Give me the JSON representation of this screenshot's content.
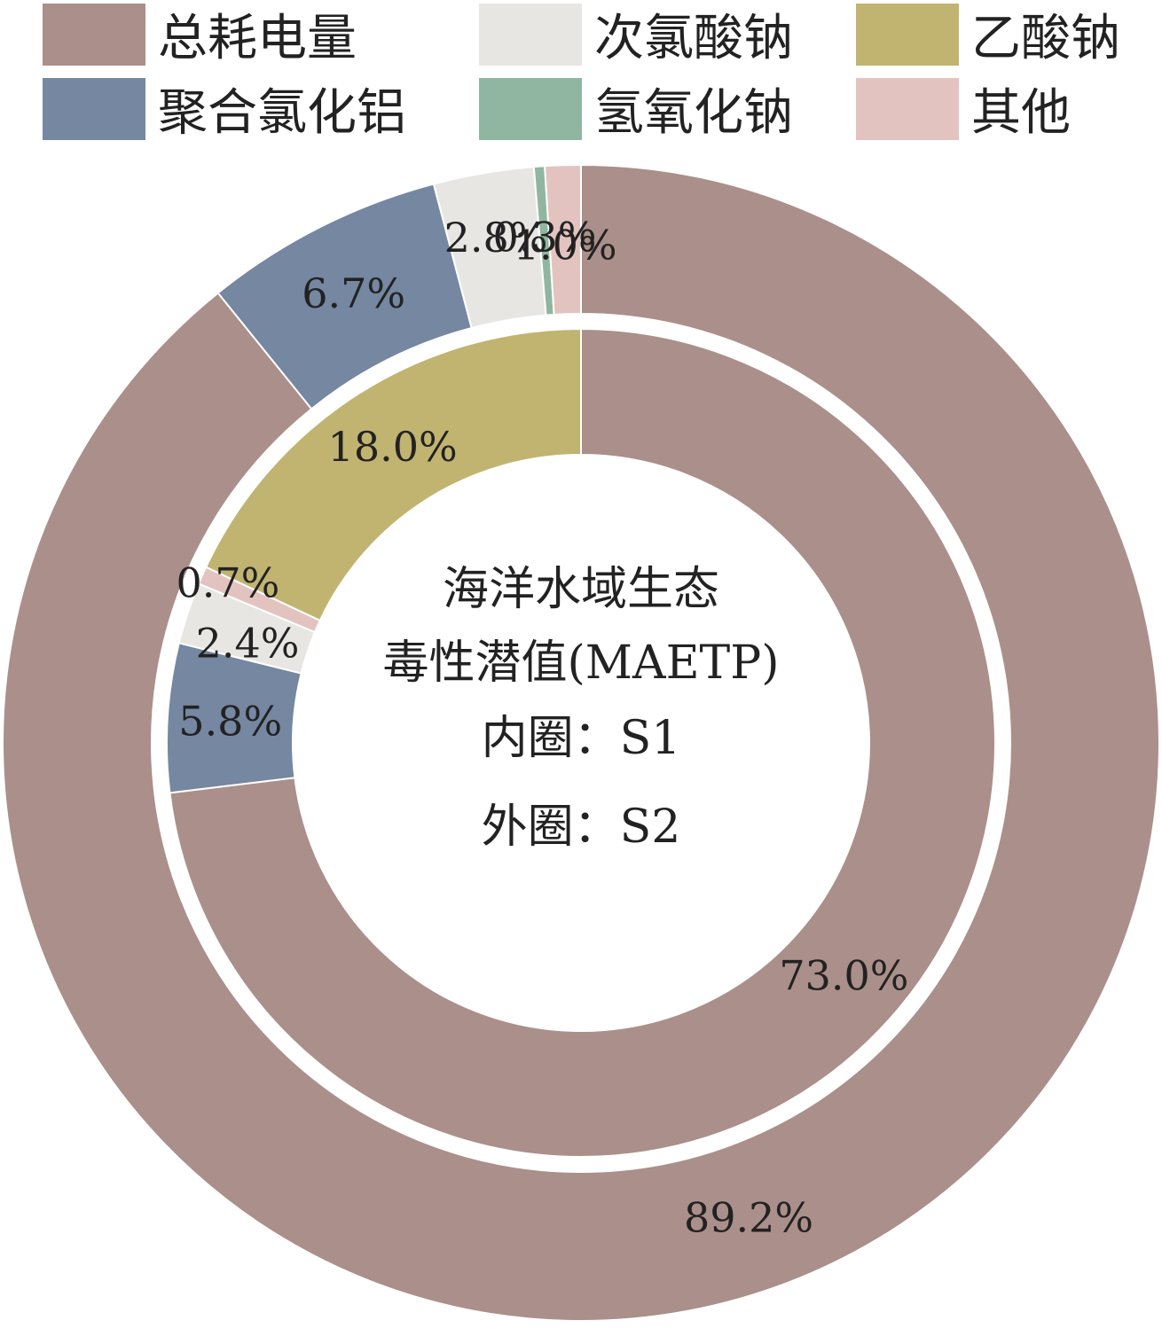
{
  "chart_data": {
    "type": "pie",
    "subtype": "nested-donut",
    "center_title": [
      "海洋水域生态",
      "毒性潜值(MAETP)",
      "内圈：S1",
      "外圈：S2"
    ],
    "legend": [
      {
        "name": "总耗电量",
        "color": "#ab8f8a"
      },
      {
        "name": "次氯酸钠",
        "color": "#e8e6e3"
      },
      {
        "name": "乙酸钠",
        "color": "#c1b470"
      },
      {
        "name": "聚合氯化铝",
        "color": "#7587a1"
      },
      {
        "name": "氢氧化钠",
        "color": "#90b6a2"
      },
      {
        "name": "其他",
        "color": "#e3c3c0"
      }
    ],
    "rings": [
      {
        "name": "S1",
        "position": "inner",
        "slices": [
          {
            "category": "总耗电量",
            "value": 73.0,
            "label": "73.0%"
          },
          {
            "category": "聚合氯化铝",
            "value": 5.8,
            "label": "5.8%"
          },
          {
            "category": "次氯酸钠",
            "value": 2.4,
            "label": "2.4%"
          },
          {
            "category": "其他",
            "value": 0.7,
            "label": "0.7%"
          },
          {
            "category": "乙酸钠",
            "value": 18.0,
            "label": "18.0%"
          }
        ]
      },
      {
        "name": "S2",
        "position": "outer",
        "slices": [
          {
            "category": "总耗电量",
            "value": 89.2,
            "label": "89.2%"
          },
          {
            "category": "聚合氯化铝",
            "value": 6.7,
            "label": "6.7%"
          },
          {
            "category": "次氯酸钠",
            "value": 2.8,
            "label": "2.8%"
          },
          {
            "category": "氢氧化钠",
            "value": 0.3,
            "label": "0.3%"
          },
          {
            "category": "其他",
            "value": 1.0,
            "label": "1.0%"
          }
        ]
      }
    ]
  }
}
